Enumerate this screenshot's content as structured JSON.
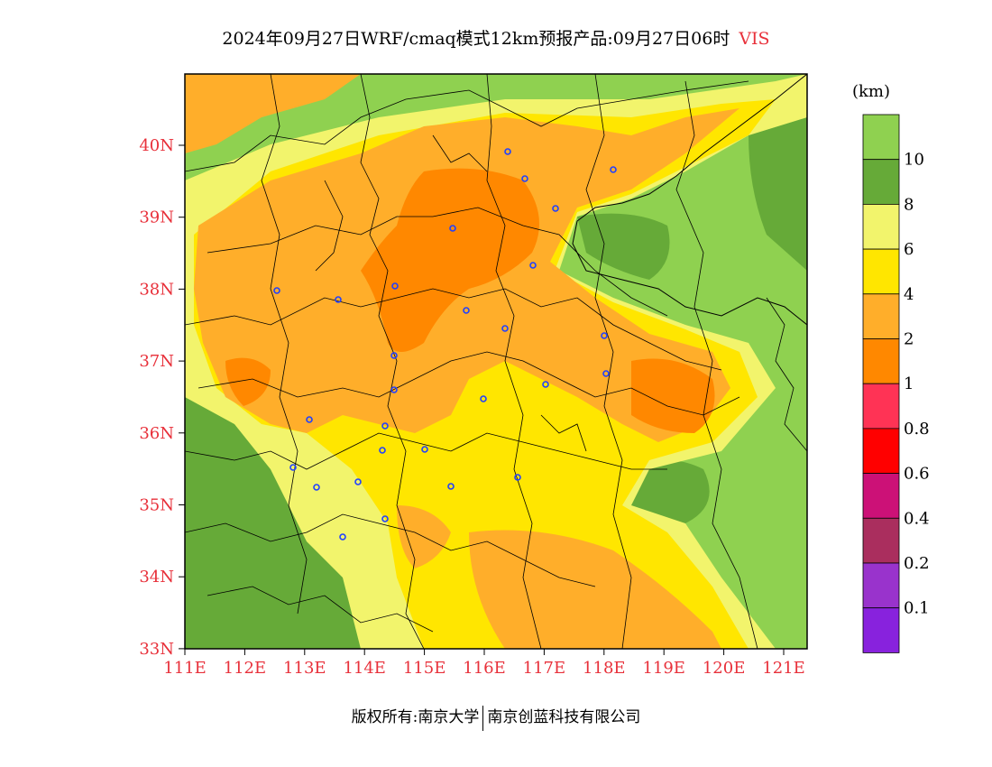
{
  "title": {
    "main": "2024年09月27日WRF/cmaq模式12km预报产品:09月27日06时",
    "variable": "VIS"
  },
  "map": {
    "lat_labels": [
      "40N",
      "39N",
      "38N",
      "37N",
      "36N",
      "35N",
      "34N",
      "33N"
    ],
    "lon_labels": [
      "111E",
      "112E",
      "113E",
      "114E",
      "115E",
      "116E",
      "117E",
      "118E",
      "119E",
      "120E",
      "121E"
    ],
    "color_key": {
      "gt10": "#8fd150",
      "8-10": "#66aa38",
      "6-8": "#f2f46c",
      "4-6": "#ffe600",
      "2-4": "#ffae2a",
      "1-2": "#ff8800"
    },
    "city_marker_color": "#2040ff"
  },
  "colorbar": {
    "unit": "(km)",
    "levels": [
      "10",
      "8",
      "6",
      "4",
      "2",
      "1",
      "0.8",
      "0.6",
      "0.4",
      "0.2",
      "0.1"
    ],
    "colors": [
      "#8fd150",
      "#66aa38",
      "#f2f46c",
      "#ffe600",
      "#ffae2a",
      "#ff8800",
      "#ff3355",
      "#ff0000",
      "#cc1177",
      "#aa2e5e",
      "#9933cc",
      "#8822dd"
    ]
  },
  "footer": {
    "copyright": "版权所有:南京大学",
    "company": "南京创蓝科技有限公司"
  }
}
